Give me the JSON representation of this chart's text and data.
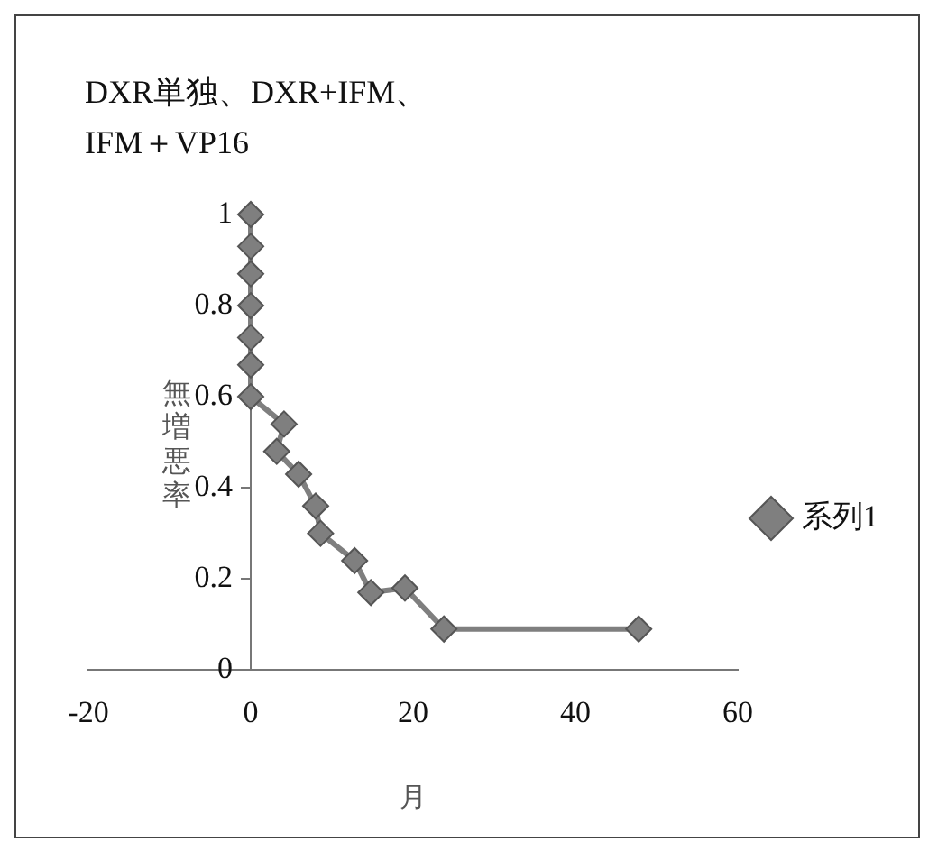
{
  "chart_data": {
    "type": "line",
    "title": "DXR単独、DXR+IFM、IFM＋VP16",
    "xlabel": "月",
    "ylabel": "無増悪率",
    "series": [
      {
        "name": "系列1",
        "color": "#7f7f7f",
        "x": [
          0,
          0,
          0,
          0,
          0,
          0,
          0,
          4.1,
          3.2,
          5.9,
          8,
          8.6,
          12.8,
          14.8,
          19,
          23.8,
          47.8
        ],
        "values": [
          1,
          0.93,
          0.87,
          0.8,
          0.73,
          0.67,
          0.6,
          0.54,
          0.48,
          0.43,
          0.36,
          0.3,
          0.24,
          0.17,
          0.18,
          0.09,
          0.09
        ]
      }
    ],
    "xlim": [
      -20,
      60
    ],
    "xticks": [
      -20,
      0,
      20,
      40,
      60
    ],
    "ylim": [
      0,
      1
    ],
    "yticks": [
      0,
      0.2,
      0.4,
      0.6,
      0.8,
      1
    ],
    "grid": false,
    "legend": "right",
    "marker": "diamond",
    "line_style": "solid"
  }
}
